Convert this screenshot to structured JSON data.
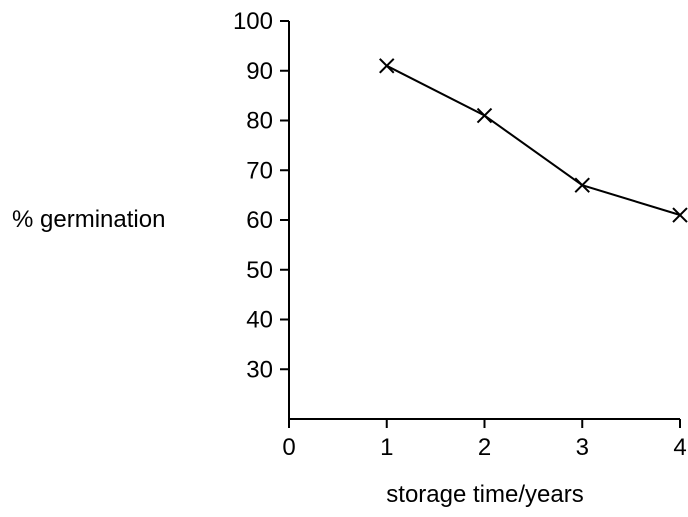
{
  "chart_data": {
    "type": "line",
    "xlabel": "storage time/years",
    "ylabel": "% germination",
    "x_ticks": [
      0,
      1,
      2,
      3,
      4
    ],
    "y_ticks": [
      30,
      40,
      50,
      60,
      70,
      80,
      90,
      100
    ],
    "xlim": [
      0,
      4
    ],
    "ylim": [
      20,
      100
    ],
    "grid": false,
    "series": [
      {
        "marker": "x",
        "color": "#000000",
        "x": [
          1,
          2,
          3,
          4
        ],
        "y": [
          91,
          81,
          67,
          61
        ]
      }
    ]
  }
}
